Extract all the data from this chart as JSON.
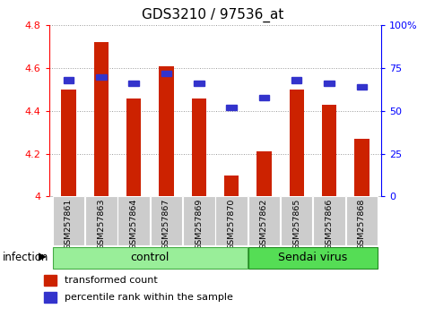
{
  "title": "GDS3210 / 97536_at",
  "samples": [
    "GSM257861",
    "GSM257863",
    "GSM257864",
    "GSM257867",
    "GSM257869",
    "GSM257870",
    "GSM257862",
    "GSM257865",
    "GSM257866",
    "GSM257868"
  ],
  "transformed_count": [
    4.5,
    4.72,
    4.46,
    4.61,
    4.46,
    4.1,
    4.21,
    4.5,
    4.43,
    4.27
  ],
  "percentile_rank": [
    68,
    70,
    66,
    72,
    66,
    52,
    58,
    68,
    66,
    64
  ],
  "ylim_left": [
    4.0,
    4.8
  ],
  "ylim_right": [
    0,
    100
  ],
  "yticks_left": [
    4.0,
    4.2,
    4.4,
    4.6,
    4.8
  ],
  "ytick_labels_left": [
    "4",
    "4.2",
    "4.4",
    "4.6",
    "4.8"
  ],
  "yticks_right": [
    0,
    25,
    50,
    75,
    100
  ],
  "ytick_labels_right": [
    "0",
    "25",
    "50",
    "75",
    "100%"
  ],
  "bar_color": "#cc2200",
  "square_color": "#3333cc",
  "bar_bottom": 4.0,
  "n_control": 6,
  "n_sendai": 4,
  "control_label": "control",
  "sendai_label": "Sendai virus",
  "infection_label": "infection",
  "legend_bar_label": "transformed count",
  "legend_sq_label": "percentile rank within the sample",
  "group_color_control": "#99ee99",
  "group_color_sendai": "#55dd55",
  "xtick_bg": "#cccccc",
  "grid_color": "#999999",
  "title_fontsize": 11,
  "tick_fontsize": 8,
  "label_fontsize": 8.5,
  "group_fontsize": 9,
  "legend_fontsize": 8
}
